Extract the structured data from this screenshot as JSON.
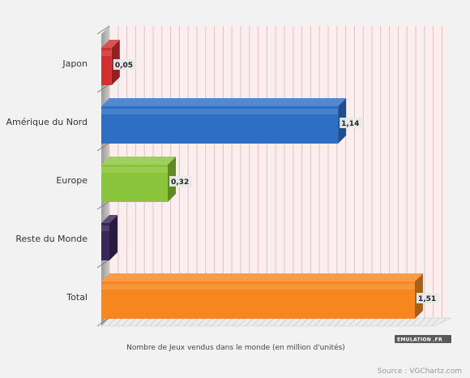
{
  "chart_data": {
    "type": "bar",
    "orientation": "horizontal",
    "categories": [
      "Japon",
      "Amérique du Nord",
      "Europe",
      "Reste du Monde",
      "Total"
    ],
    "values": [
      0.05,
      1.14,
      0.32,
      0.0,
      1.51
    ],
    "value_labels": [
      "0,05",
      "1,14",
      "0,32",
      "",
      "1,51"
    ],
    "colors": [
      "#d32f2f",
      "#2e6fc4",
      "#8ac43a",
      "#3a2658",
      "#f7861e"
    ],
    "xlabel": "Nombre de Jeux vendus dans le monde (en million d'unités)",
    "xlim": [
      0,
      1.6
    ],
    "grid": true,
    "legend": "none"
  },
  "source": "Source : VGChartz.com",
  "logo": {
    "text_left": "EMULATION",
    "text_right": ".FR",
    "accent": "#f2c200"
  },
  "colors": {
    "background": "#f2f2f2",
    "plot_background": "#faeeee",
    "grid_line": "#e3c2c2"
  }
}
